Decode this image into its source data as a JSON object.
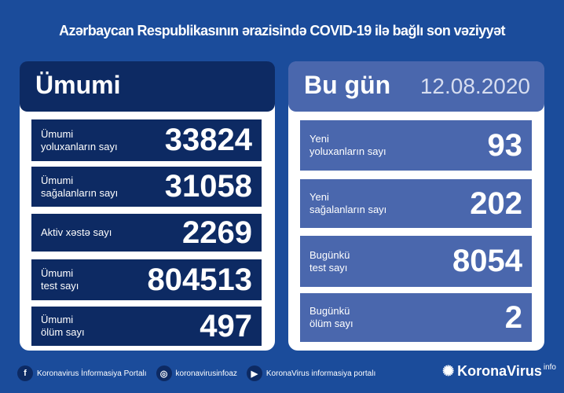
{
  "title": "Azərbaycan Respublikasının ərazisində COVID-19 ilə bağlı son vəziyyət",
  "total": {
    "header": "Ümumi",
    "rows": [
      {
        "line1": "Ümumi",
        "line2": "yoluxanların sayı",
        "value": "33824"
      },
      {
        "line1": "Ümumi",
        "line2": "sağalanların sayı",
        "value": "31058"
      },
      {
        "line1": "Aktiv xəstə sayı",
        "line2": "",
        "value": "2269"
      },
      {
        "line1": "Ümumi",
        "line2": "test sayı",
        "value": "804513"
      },
      {
        "line1": "Ümumi",
        "line2": "ölüm sayı",
        "value": "497"
      }
    ]
  },
  "today": {
    "header": "Bu gün",
    "date": "12.08.2020",
    "rows": [
      {
        "line1": "Yeni",
        "line2": "yoluxanların sayı",
        "value": "93"
      },
      {
        "line1": "Yeni",
        "line2": "sağalanların sayı",
        "value": "202"
      },
      {
        "line1": "Bugünkü",
        "line2": "test sayı",
        "value": "8054"
      },
      {
        "line1": "Bugünkü",
        "line2": "ölüm sayı",
        "value": "2"
      }
    ]
  },
  "footer": {
    "facebook": "Koronavirus İnformasiya Portalı",
    "instagram": "koronavirusinfoaz",
    "youtube": "KoronaVirus informasiya portalı"
  },
  "logo": {
    "name": "KoronaVirus",
    "suffix": "info"
  },
  "colors": {
    "background": "#1b4c9b",
    "navy": "#0d2a63",
    "accent": "#4a67ad"
  }
}
